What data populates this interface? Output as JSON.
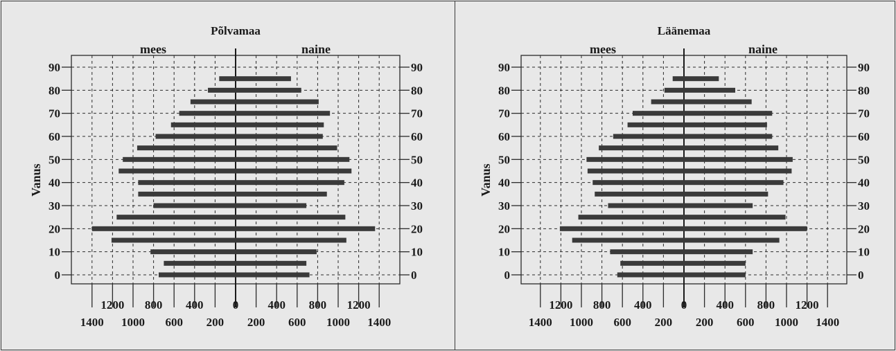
{
  "chart_data": [
    {
      "type": "bar",
      "title": "Põlvamaa",
      "left_label": "mees",
      "right_label": "naine",
      "ylabel": "Vanus",
      "y_ticks": [
        0,
        10,
        20,
        30,
        40,
        50,
        60,
        70,
        80,
        90
      ],
      "x_tick_labels_upper": [
        "1200",
        "800",
        "400",
        "0",
        "400",
        "800",
        "1200"
      ],
      "x_tick_labels_lower": [
        "1400",
        "1000",
        "600",
        "200",
        "200",
        "600",
        "1000",
        "1400"
      ],
      "xlim": [
        -1400,
        1400
      ],
      "age_groups": [
        0,
        5,
        10,
        15,
        20,
        25,
        30,
        35,
        40,
        45,
        50,
        55,
        60,
        65,
        70,
        75,
        80,
        85
      ],
      "series": [
        {
          "name": "mees",
          "values": [
            750,
            700,
            830,
            1210,
            1400,
            1160,
            800,
            950,
            950,
            1140,
            1100,
            960,
            780,
            630,
            550,
            440,
            270,
            160
          ]
        },
        {
          "name": "naine",
          "values": [
            720,
            690,
            790,
            1080,
            1360,
            1070,
            690,
            890,
            1060,
            1130,
            1110,
            990,
            850,
            860,
            920,
            810,
            640,
            540
          ]
        }
      ]
    },
    {
      "type": "bar",
      "title": "Läänemaa",
      "left_label": "mees",
      "right_label": "naine",
      "ylabel": "Vanus",
      "y_ticks": [
        0,
        10,
        20,
        30,
        40,
        50,
        60,
        70,
        80,
        90
      ],
      "x_tick_labels_upper": [
        "1200",
        "800",
        "400",
        "0",
        "400",
        "800",
        "1200"
      ],
      "x_tick_labels_lower": [
        "1400",
        "1000",
        "600",
        "200",
        "200",
        "600",
        "1000",
        "1400"
      ],
      "xlim": [
        -1400,
        1400
      ],
      "age_groups": [
        0,
        5,
        10,
        15,
        20,
        25,
        30,
        35,
        40,
        45,
        50,
        55,
        60,
        65,
        70,
        75,
        80,
        85
      ],
      "series": [
        {
          "name": "mees",
          "values": [
            650,
            620,
            720,
            1090,
            1210,
            1030,
            740,
            870,
            890,
            940,
            950,
            830,
            690,
            550,
            500,
            320,
            190,
            110
          ]
        },
        {
          "name": "naine",
          "values": [
            600,
            600,
            670,
            930,
            1200,
            990,
            670,
            820,
            970,
            1050,
            1060,
            920,
            860,
            810,
            860,
            660,
            500,
            340
          ]
        }
      ]
    }
  ]
}
